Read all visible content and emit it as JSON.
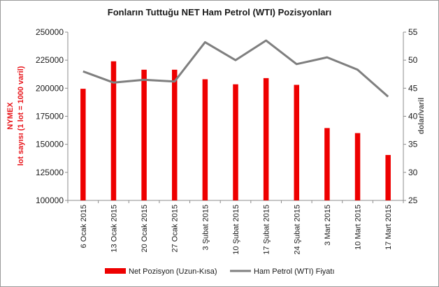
{
  "chart_data": {
    "type": "bar",
    "title": "Fonların Tuttuğu NET Ham Petrol (WTI) Pozisyonları",
    "categories": [
      "6 Ocak 2015",
      "13 Ocak 2015",
      "20 Ocak 2015",
      "27 Ocak 2015",
      "3 Şubat 2015",
      "10 Şubat 2015",
      "17 Şubat 2015",
      "24 Şubat 2015",
      "3 Mart 2015",
      "10 Mart 2015",
      "17 Mart 2015"
    ],
    "series": [
      {
        "name": "Net Pozisyon (Uzun-Kısa)",
        "type": "bar",
        "axis": "left",
        "color": "#ee0000",
        "values": [
          199500,
          224000,
          216500,
          216500,
          208000,
          203500,
          209000,
          203000,
          164500,
          160000,
          140500
        ]
      },
      {
        "name": "Ham Petrol (WTI) Fiyatı",
        "type": "line",
        "axis": "right",
        "color": "#7f7f7f",
        "values": [
          48.0,
          46.0,
          46.5,
          46.2,
          53.2,
          50.0,
          53.5,
          49.3,
          50.5,
          48.3,
          43.5
        ]
      }
    ],
    "ylabel_left": [
      "NYMEX",
      "lot sayısı (1 lot = 1000 varil)"
    ],
    "ylabel_right": "dolar/varil",
    "ylim_left": [
      100000,
      250000
    ],
    "ylim_right": [
      25,
      55
    ],
    "yticks_left": [
      "250000",
      "225000",
      "200000",
      "175000",
      "150000",
      "125000",
      "100000"
    ],
    "yticks_right": [
      "55",
      "50",
      "45",
      "40",
      "35",
      "30",
      "25"
    ],
    "grid": false,
    "legend_position": "bottom"
  }
}
